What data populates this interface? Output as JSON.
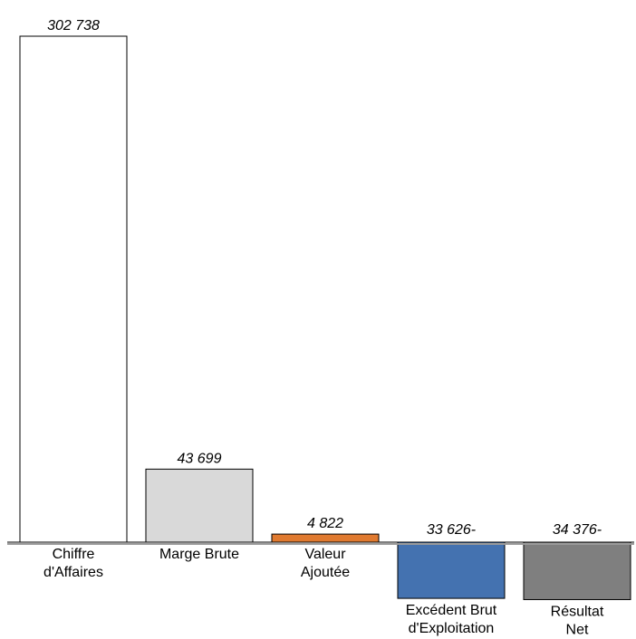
{
  "chart_data": {
    "type": "bar",
    "title": "",
    "xlabel": "",
    "ylabel": "",
    "categories": [
      [
        "Chiffre",
        "d'Affaires"
      ],
      [
        "Marge Brute"
      ],
      [
        "Valeur",
        "Ajoutée"
      ],
      [
        "Excédent Brut",
        "d'Exploitation"
      ],
      [
        "Résultat",
        "Net"
      ]
    ],
    "values": [
      302738,
      43699,
      4822,
      -33626,
      -34376
    ],
    "value_labels": [
      "302 738",
      "43 699",
      "4 822",
      "33 626-",
      "34 376-"
    ],
    "colors": [
      "#ffffff",
      "#d9d9d9",
      "#e07a30",
      "#4472b0",
      "#7f7f7f"
    ],
    "ylim": [
      -34376,
      302738
    ],
    "grid": false
  }
}
